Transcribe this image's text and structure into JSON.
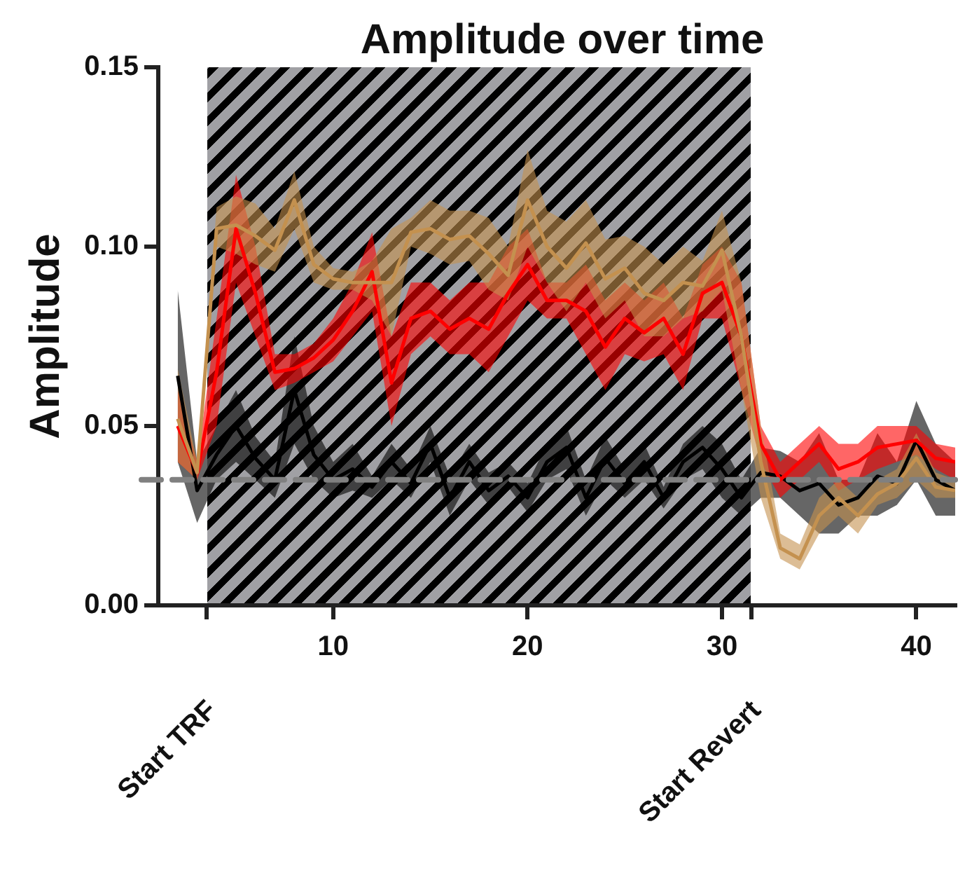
{
  "chart_data": {
    "type": "line",
    "title": "Amplitude over time",
    "ylabel": "Amplitude",
    "x": [
      2,
      3,
      4,
      5,
      6,
      7,
      8,
      9,
      10,
      11,
      12,
      13,
      14,
      15,
      16,
      17,
      18,
      19,
      20,
      21,
      22,
      23,
      24,
      25,
      26,
      27,
      28,
      29,
      30,
      31,
      32,
      33,
      34,
      35,
      36,
      37,
      38,
      39,
      40,
      41,
      42
    ],
    "series": [
      {
        "color": "#000000",
        "lower": [
          0.04,
          0.023,
          0.035,
          0.04,
          0.035,
          0.03,
          0.045,
          0.035,
          0.03,
          0.032,
          0.03,
          0.035,
          0.03,
          0.04,
          0.025,
          0.035,
          0.028,
          0.033,
          0.026,
          0.035,
          0.038,
          0.025,
          0.035,
          0.03,
          0.035,
          0.027,
          0.035,
          0.038,
          0.03,
          0.025,
          0.03,
          0.03,
          0.025,
          0.02,
          0.02,
          0.025,
          0.025,
          0.028,
          0.035,
          0.025,
          0.025
        ],
        "upper": [
          0.088,
          0.04,
          0.05,
          0.06,
          0.047,
          0.04,
          0.075,
          0.05,
          0.04,
          0.045,
          0.036,
          0.045,
          0.038,
          0.05,
          0.036,
          0.045,
          0.037,
          0.04,
          0.034,
          0.045,
          0.05,
          0.035,
          0.047,
          0.038,
          0.045,
          0.033,
          0.045,
          0.05,
          0.045,
          0.035,
          0.044,
          0.043,
          0.04,
          0.048,
          0.035,
          0.035,
          0.048,
          0.04,
          0.057,
          0.045,
          0.04
        ],
        "values": [
          0.064,
          0.032,
          0.042,
          0.05,
          0.041,
          0.035,
          0.06,
          0.042,
          0.035,
          0.038,
          0.033,
          0.04,
          0.034,
          0.045,
          0.03,
          0.04,
          0.032,
          0.036,
          0.03,
          0.04,
          0.044,
          0.03,
          0.041,
          0.034,
          0.04,
          0.03,
          0.04,
          0.044,
          0.038,
          0.03,
          0.037,
          0.036,
          0.032,
          0.034,
          0.028,
          0.03,
          0.036,
          0.034,
          0.046,
          0.035,
          0.032
        ]
      },
      {
        "color": "#ff0000",
        "lower": [
          0.04,
          0.035,
          0.05,
          0.09,
          0.075,
          0.06,
          0.062,
          0.065,
          0.068,
          0.075,
          0.082,
          0.05,
          0.07,
          0.075,
          0.07,
          0.07,
          0.065,
          0.075,
          0.085,
          0.08,
          0.08,
          0.07,
          0.06,
          0.07,
          0.068,
          0.07,
          0.06,
          0.08,
          0.08,
          0.06,
          0.04,
          0.03,
          0.035,
          0.04,
          0.032,
          0.035,
          0.038,
          0.04,
          0.042,
          0.038,
          0.035
        ],
        "upper": [
          0.06,
          0.04,
          0.08,
          0.12,
          0.1,
          0.07,
          0.07,
          0.073,
          0.08,
          0.09,
          0.104,
          0.075,
          0.09,
          0.09,
          0.085,
          0.09,
          0.09,
          0.1,
          0.105,
          0.09,
          0.09,
          0.095,
          0.085,
          0.09,
          0.085,
          0.09,
          0.08,
          0.095,
          0.1,
          0.09,
          0.05,
          0.04,
          0.045,
          0.05,
          0.045,
          0.045,
          0.05,
          0.05,
          0.05,
          0.045,
          0.044
        ],
        "values": [
          0.05,
          0.037,
          0.065,
          0.105,
          0.087,
          0.065,
          0.066,
          0.069,
          0.074,
          0.082,
          0.093,
          0.062,
          0.08,
          0.082,
          0.077,
          0.08,
          0.077,
          0.087,
          0.095,
          0.085,
          0.085,
          0.082,
          0.072,
          0.08,
          0.076,
          0.08,
          0.07,
          0.087,
          0.09,
          0.075,
          0.045,
          0.035,
          0.04,
          0.045,
          0.038,
          0.04,
          0.044,
          0.045,
          0.046,
          0.041,
          0.04
        ]
      },
      {
        "color": "#c4914f",
        "lower": [
          0.04,
          0.035,
          0.1,
          0.098,
          0.095,
          0.093,
          0.105,
          0.09,
          0.088,
          0.088,
          0.085,
          0.075,
          0.1,
          0.098,
          0.095,
          0.096,
          0.088,
          0.085,
          0.1,
          0.09,
          0.082,
          0.09,
          0.08,
          0.085,
          0.075,
          0.075,
          0.08,
          0.082,
          0.088,
          0.06,
          0.03,
          0.013,
          0.01,
          0.02,
          0.025,
          0.02,
          0.028,
          0.03,
          0.035,
          0.03,
          0.03
        ],
        "upper": [
          0.066,
          0.04,
          0.111,
          0.114,
          0.112,
          0.105,
          0.121,
          0.1,
          0.094,
          0.093,
          0.096,
          0.105,
          0.108,
          0.113,
          0.11,
          0.11,
          0.108,
          0.1,
          0.127,
          0.11,
          0.107,
          0.113,
          0.102,
          0.103,
          0.1,
          0.095,
          0.1,
          0.096,
          0.11,
          0.09,
          0.05,
          0.02,
          0.017,
          0.03,
          0.035,
          0.03,
          0.035,
          0.038,
          0.048,
          0.037,
          0.035
        ],
        "values": [
          0.052,
          0.037,
          0.105,
          0.106,
          0.103,
          0.099,
          0.113,
          0.095,
          0.091,
          0.09,
          0.09,
          0.09,
          0.104,
          0.105,
          0.102,
          0.103,
          0.098,
          0.092,
          0.113,
          0.1,
          0.094,
          0.101,
          0.091,
          0.094,
          0.087,
          0.085,
          0.09,
          0.089,
          0.099,
          0.075,
          0.04,
          0.016,
          0.013,
          0.025,
          0.03,
          0.025,
          0.031,
          0.034,
          0.041,
          0.033,
          0.032
        ]
      }
    ],
    "xlim": [
      1,
      42
    ],
    "xticks": [
      {
        "value": 3.5,
        "label": null
      },
      10,
      20,
      30,
      {
        "value": 31.5,
        "label": null
      },
      40
    ],
    "annotations": [
      "Start TRF",
      "Start Revert"
    ],
    "ylim": [
      0,
      0.15
    ],
    "yticks": [
      {
        "value": 0,
        "label": "0.00"
      },
      {
        "value": 0.05,
        "label": "0.05"
      },
      {
        "value": 0.1,
        "label": "0.10"
      },
      {
        "value": 0.15,
        "label": "0.15"
      }
    ],
    "bands": [
      {
        "axis": "x",
        "from": 3.5,
        "to": 31.5,
        "color": "#a0a0a4"
      }
    ],
    "ref_lines": [
      {
        "axis": "y",
        "value": 0.035,
        "color": "#808080",
        "line_style": "dashed"
      }
    ],
    "grid": false,
    "legend": false,
    "marker": "none",
    "line_style": "solid"
  }
}
